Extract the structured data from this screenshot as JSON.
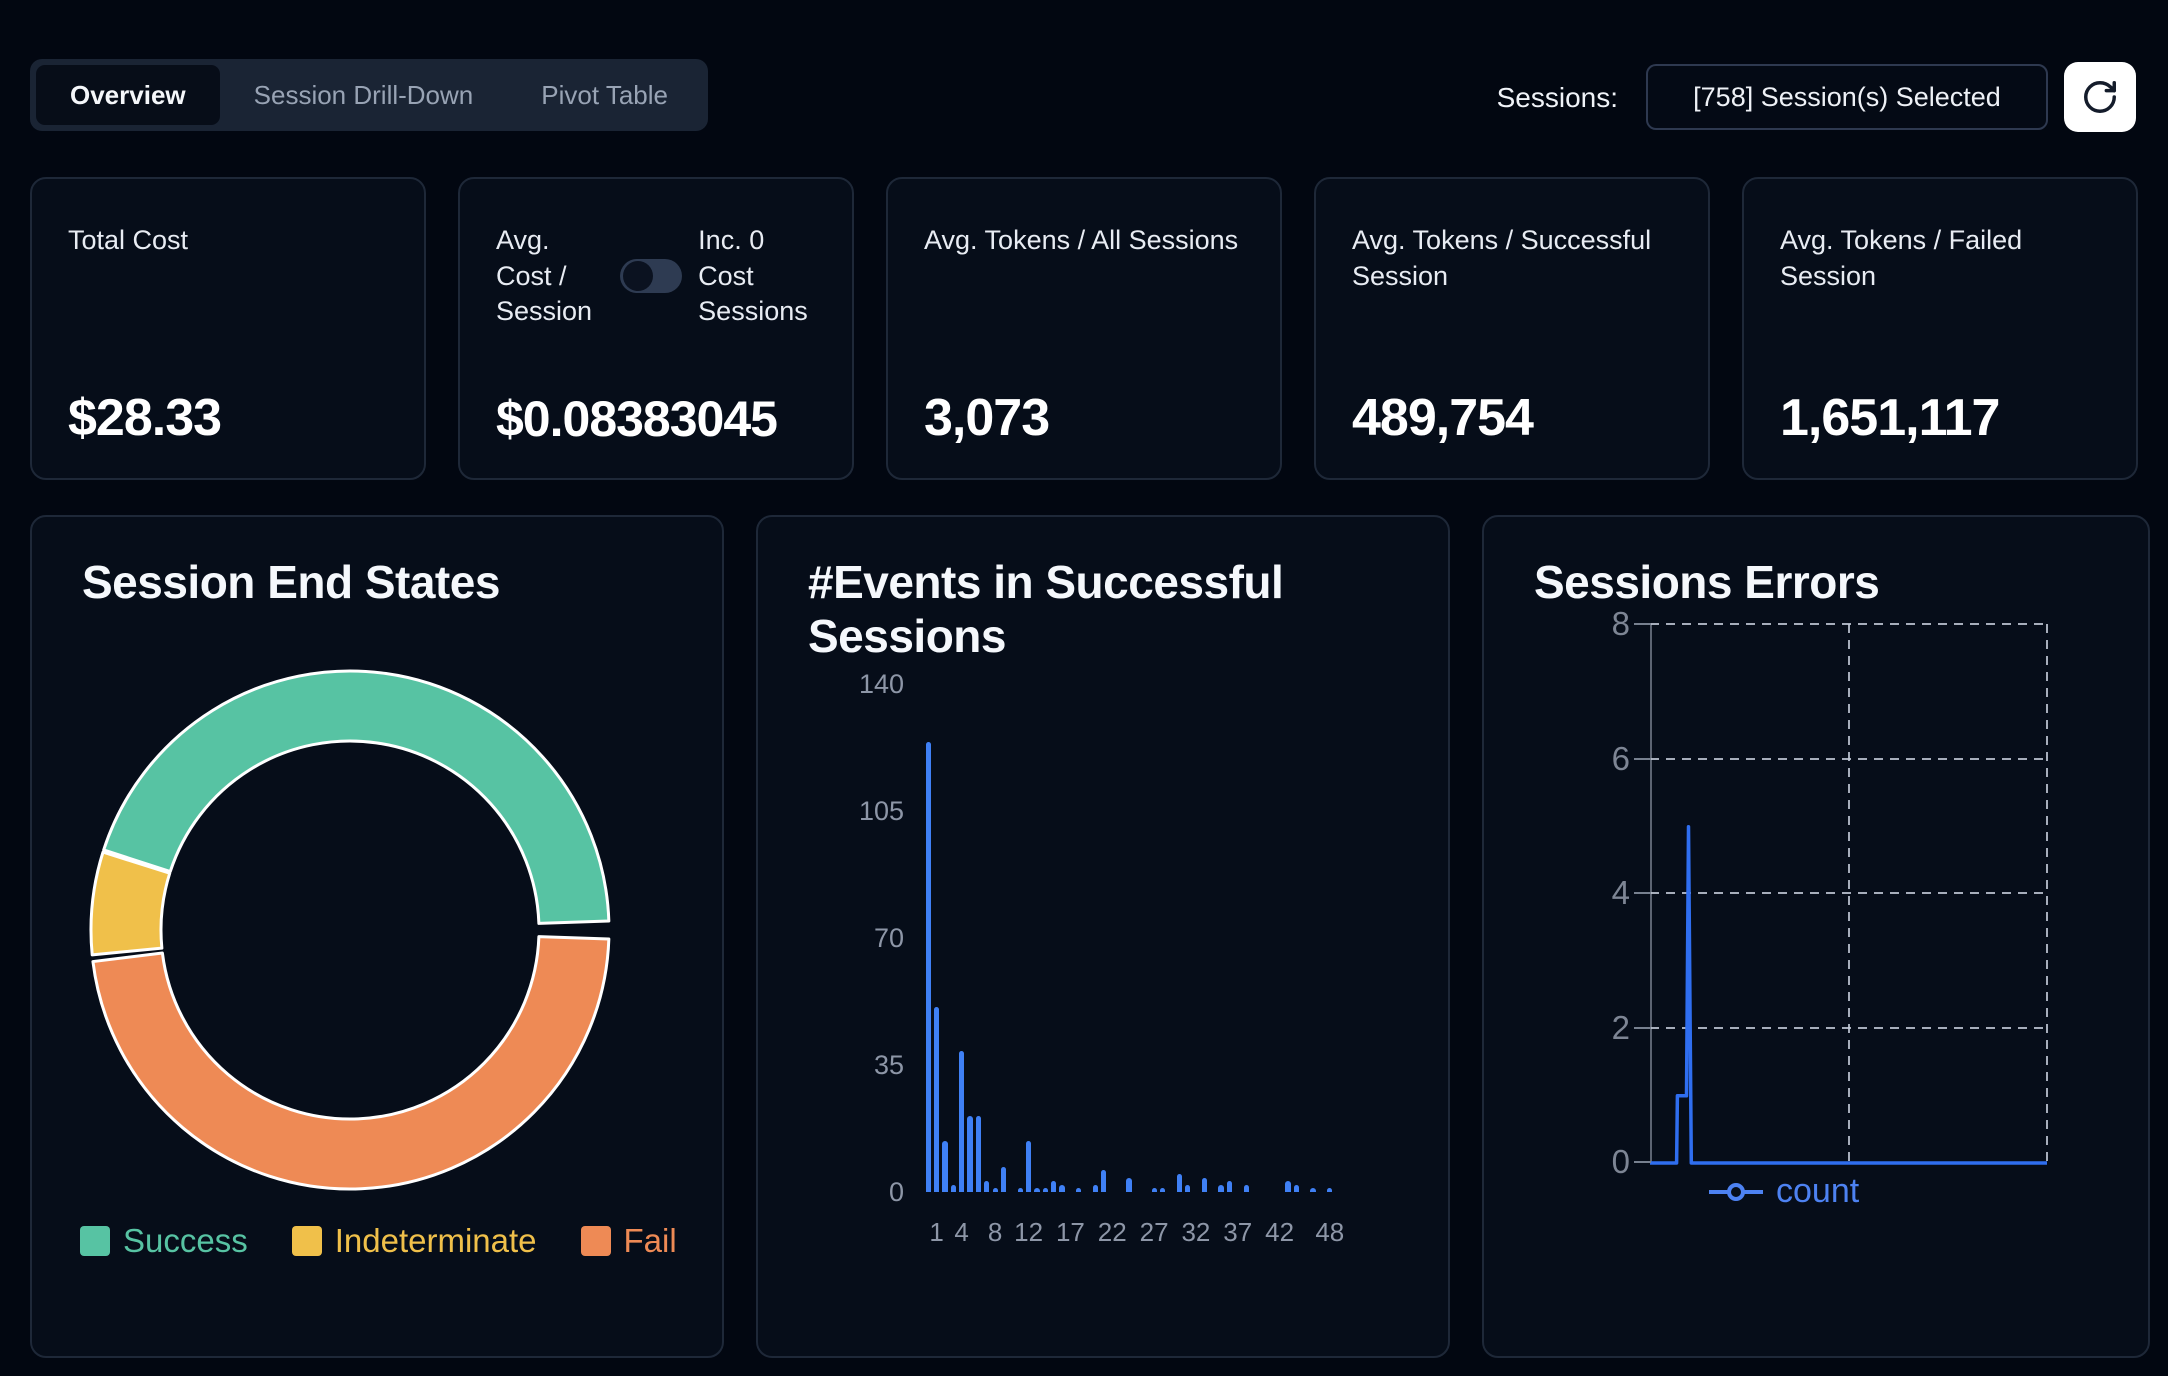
{
  "header": {
    "tabs": [
      {
        "label": "Overview",
        "active": true
      },
      {
        "label": "Session Drill-Down",
        "active": false
      },
      {
        "label": "Pivot Table",
        "active": false
      }
    ],
    "sessions_label": "Sessions:",
    "sessions_selector_value": "[758] Session(s) Selected",
    "refresh_icon": "refresh-clockwise-arrow"
  },
  "metrics": [
    {
      "label": "Total Cost",
      "value": "$28.33"
    },
    {
      "label": "Avg. Cost / Session",
      "toggle_label": "Inc. 0 Cost Sessions",
      "toggle_on": false,
      "value": "$0.08383045"
    },
    {
      "label": "Avg. Tokens / All Sessions",
      "value": "3,073"
    },
    {
      "label": "Avg. Tokens / Successful Session",
      "value": "489,754"
    },
    {
      "label": "Avg. Tokens / Failed Session",
      "value": "1,651,117"
    }
  ],
  "colors": {
    "page_bg": "#020711",
    "card_bg": "#060d19",
    "card_border": "#1e2838",
    "success_teal": "#57c3a3",
    "indeterminate_yellow": "#f0c04a",
    "fail_orange": "#ee8a55",
    "bar_blue": "#3f80f5",
    "line_blue": "#2f6ef0",
    "count_legend_blue": "#4d82f2",
    "muted_text": "#8d96a7"
  },
  "chart_data": [
    {
      "type": "pie",
      "title": "Session End States",
      "legend": [
        {
          "label": "Success",
          "color": "#57c3a3"
        },
        {
          "label": "Indeterminate",
          "color": "#f0c04a"
        },
        {
          "label": "Fail",
          "color": "#ee8a55"
        }
      ],
      "values_percent": {
        "Success": 45.2,
        "Indeterminate": 6.5,
        "Fail": 48.3
      },
      "inner_radius_ratio": 0.73,
      "legend_position": "bottom",
      "segments": [
        {
          "label": "Success",
          "color": "#57c3a3",
          "start_deg_cw_from_top": 288,
          "end_deg_cw_from_top": 448
        },
        {
          "label": "Fail",
          "color": "#ee8a55",
          "start_deg_cw_from_top": 452,
          "end_deg_cw_from_top": 623
        },
        {
          "label": "Indeterminate",
          "color": "#f0c04a",
          "start_deg_cw_from_top": 624.5,
          "end_deg_cw_from_top": 647.5
        }
      ]
    },
    {
      "type": "bar",
      "title": "#Events in Successful Sessions",
      "categories": [
        0,
        1,
        2,
        3,
        4,
        5,
        6,
        7,
        8,
        9,
        10,
        11,
        12,
        13,
        14,
        15,
        16,
        17,
        18,
        19,
        20,
        21,
        22,
        23,
        24,
        25,
        26,
        27,
        28,
        29,
        30,
        31,
        32,
        33,
        34,
        35,
        36,
        37,
        38,
        39,
        40,
        41,
        42,
        43,
        44,
        45,
        46,
        47,
        48
      ],
      "values": [
        124,
        51,
        14,
        2,
        39,
        21,
        21,
        3,
        1,
        7,
        0,
        1,
        14,
        1,
        1,
        3,
        2,
        0,
        1,
        0,
        2,
        6,
        0,
        0,
        4,
        0,
        0,
        1,
        1,
        0,
        5,
        2,
        0,
        4,
        0,
        2,
        3,
        0,
        2,
        0,
        0,
        0,
        0,
        3,
        2,
        0,
        1,
        0,
        1
      ],
      "x_ticks_shown": [
        {
          "index": 1,
          "label": "1"
        },
        {
          "index": 4,
          "label": "4"
        },
        {
          "index": 8,
          "label": "8"
        },
        {
          "index": 12,
          "label": "12"
        },
        {
          "index": 17,
          "label": "17"
        },
        {
          "index": 22,
          "label": "22"
        },
        {
          "index": 27,
          "label": "27"
        },
        {
          "index": 32,
          "label": "32"
        },
        {
          "index": 37,
          "label": "37"
        },
        {
          "index": 42,
          "label": "42"
        },
        {
          "index": 48,
          "label": "48"
        }
      ],
      "yticks": [
        0,
        35,
        70,
        105,
        140
      ],
      "ylim": [
        0,
        140
      ],
      "xlabel": "",
      "ylabel": "",
      "grid": "off",
      "bar_color": "#3f80f5"
    },
    {
      "type": "line",
      "title": "Sessions Errors",
      "series": [
        {
          "name": "count",
          "color": "#2f6ef0",
          "points_x_fraction_y_value": [
            [
              0,
              0
            ],
            [
              0.067,
              0
            ],
            [
              0.069,
              1
            ],
            [
              0.092,
              1
            ],
            [
              0.097,
              5
            ],
            [
              0.104,
              0
            ],
            [
              1,
              0
            ]
          ]
        }
      ],
      "yticks": [
        0,
        2,
        4,
        6,
        8
      ],
      "ylim": [
        0,
        8
      ],
      "x_axis_labels": "none",
      "grid": "dashed",
      "legend": [
        "count"
      ],
      "legend_position": "bottom"
    }
  ]
}
